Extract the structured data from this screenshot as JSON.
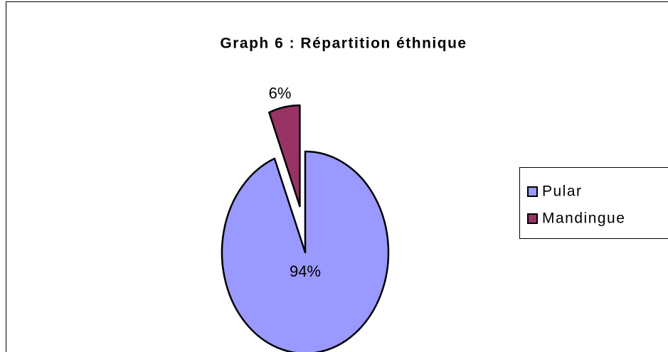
{
  "chart_data": {
    "type": "pie",
    "title": "Graph 6 : Répartition éthnique",
    "categories": [
      "Pular",
      "Mandingue"
    ],
    "values": [
      94,
      6
    ],
    "value_labels": [
      "94%",
      "6%"
    ],
    "colors": [
      "#9999ff",
      "#993366"
    ],
    "legend": "right"
  }
}
